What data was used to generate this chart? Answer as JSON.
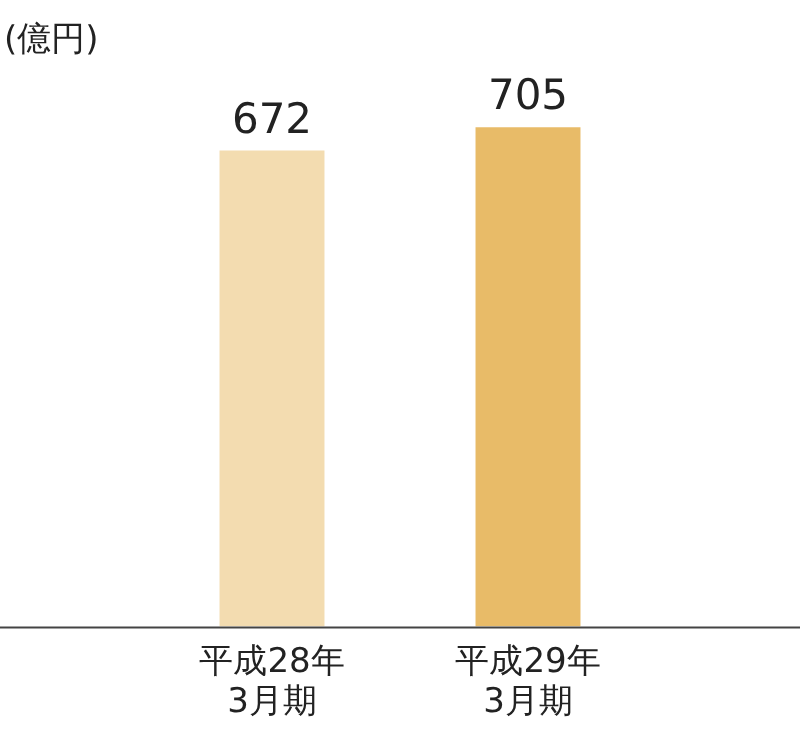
{
  "chart_data": {
    "type": "bar",
    "ylabel": "(億円)",
    "categories": [
      "平成28年\n3月期",
      "平成29年\n3月期"
    ],
    "values": [
      672,
      705
    ],
    "colors": [
      "#f3dcb0",
      "#e8bb68"
    ],
    "tick_labels": "x",
    "data_labels": true,
    "grid": false,
    "legend": false
  }
}
